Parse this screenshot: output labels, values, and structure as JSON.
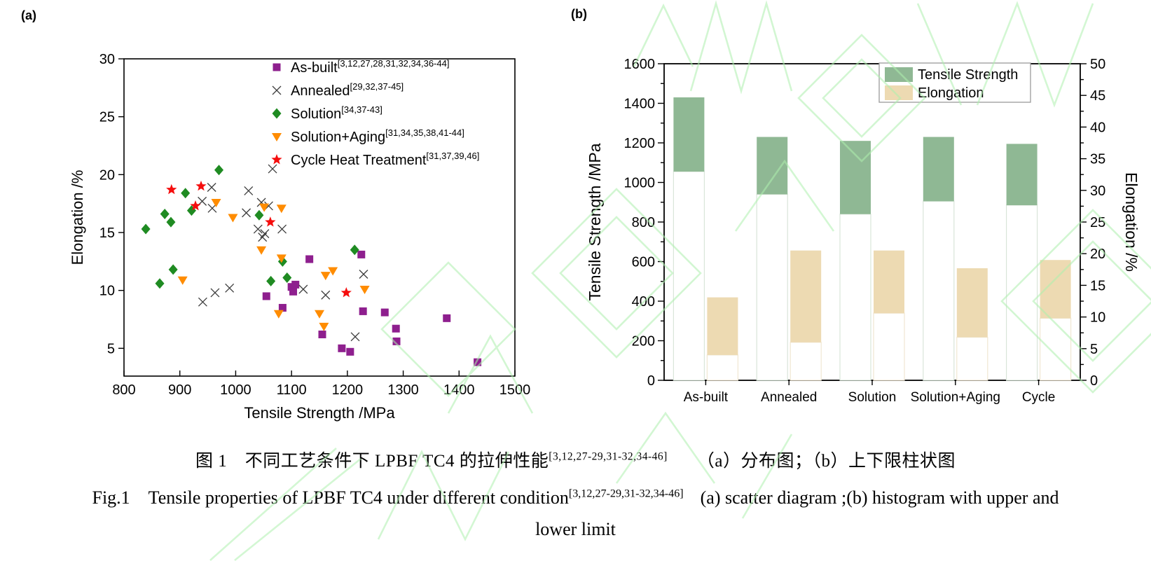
{
  "panel_a": {
    "label": "(a)",
    "chart_data": {
      "type": "scatter",
      "xlabel": "Tensile Strength /MPa",
      "ylabel": "Elongation /%",
      "xlim": [
        800,
        1500
      ],
      "xticks": [
        800,
        900,
        1000,
        1100,
        1200,
        1300,
        1400,
        1500
      ],
      "ylim": [
        2.6,
        30
      ],
      "yticks": [
        5,
        10,
        15,
        20,
        25,
        30
      ],
      "grid": false,
      "legend_position": "upper-right-inside",
      "series": [
        {
          "name": "As-built",
          "ref": "[3,12,27,28,31,32,34,36-44]",
          "marker": "square",
          "color": "#8e1f8e",
          "points": [
            [
              1055,
              9.5
            ],
            [
              1084,
              8.5
            ],
            [
              1100,
              10.3
            ],
            [
              1103,
              9.9
            ],
            [
              1107,
              10.5
            ],
            [
              1132,
              12.7
            ],
            [
              1155,
              6.2
            ],
            [
              1190,
              5.0
            ],
            [
              1205,
              4.7
            ],
            [
              1225,
              13.1
            ],
            [
              1228,
              8.2
            ],
            [
              1267,
              8.1
            ],
            [
              1287,
              6.7
            ],
            [
              1288,
              5.6
            ],
            [
              1378,
              7.6
            ],
            [
              1433,
              3.8
            ]
          ]
        },
        {
          "name": "Annealed",
          "ref": "[29,32,37-45]",
          "marker": "x",
          "color": "#3d3d3d",
          "points": [
            [
              940,
              17.7
            ],
            [
              941,
              9.0
            ],
            [
              957,
              18.9
            ],
            [
              958,
              17.1
            ],
            [
              963,
              9.8
            ],
            [
              989,
              10.2
            ],
            [
              1019,
              16.7
            ],
            [
              1023,
              18.6
            ],
            [
              1040,
              15.3
            ],
            [
              1046,
              17.6
            ],
            [
              1048,
              14.6
            ],
            [
              1052,
              14.9
            ],
            [
              1059,
              17.3
            ],
            [
              1066,
              20.5
            ],
            [
              1083,
              15.3
            ],
            [
              1121,
              10.1
            ],
            [
              1161,
              9.6
            ],
            [
              1214,
              6.0
            ],
            [
              1229,
              11.4
            ]
          ]
        },
        {
          "name": "Solution",
          "ref": "[34,37-43]",
          "marker": "diamond",
          "color": "#1f8b22",
          "points": [
            [
              839,
              15.3
            ],
            [
              864,
              10.6
            ],
            [
              873,
              16.6
            ],
            [
              884,
              15.9
            ],
            [
              888,
              11.8
            ],
            [
              910,
              18.4
            ],
            [
              921,
              16.9
            ],
            [
              970,
              20.4
            ],
            [
              1042,
              16.5
            ],
            [
              1063,
              10.8
            ],
            [
              1084,
              12.5
            ],
            [
              1092,
              11.1
            ],
            [
              1213,
              13.5
            ]
          ]
        },
        {
          "name": "Solution+Aging",
          "ref": "[31,34,35,38,41-44]",
          "marker": "triangle-down",
          "color": "#ff8c00",
          "points": [
            [
              905,
              10.9
            ],
            [
              965,
              17.6
            ],
            [
              995,
              16.3
            ],
            [
              1046,
              13.5
            ],
            [
              1051,
              17.2
            ],
            [
              1077,
              8.0
            ],
            [
              1082,
              12.8
            ],
            [
              1082,
              17.1
            ],
            [
              1150,
              8.0
            ],
            [
              1158,
              6.9
            ],
            [
              1161,
              11.3
            ],
            [
              1174,
              11.7
            ],
            [
              1231,
              10.1
            ]
          ]
        },
        {
          "name": "Cycle Heat Treatment",
          "ref": "[31,37,39,46]",
          "marker": "star",
          "color": "#f50d0d",
          "points": [
            [
              885,
              18.7
            ],
            [
              928,
              17.3
            ],
            [
              938,
              19.0
            ],
            [
              1062,
              15.9
            ],
            [
              1198,
              9.8
            ]
          ]
        }
      ]
    }
  },
  "panel_b": {
    "label": "(b)",
    "chart_data": {
      "type": "bar",
      "subtype": "floating-range-bars",
      "categories": [
        "As-built",
        "Annealed",
        "Solution",
        "Solution+Aging",
        "Cycle"
      ],
      "left_axis": {
        "label": "Tensile Strength /MPa",
        "min": 0,
        "max": 1600,
        "major_step": 200,
        "minor_step": 100
      },
      "right_axis": {
        "label": "Elongation /%",
        "min": 0,
        "max": 50,
        "major_step": 5,
        "minor_step": 2.5
      },
      "legend_position": "upper-right-inside",
      "series": [
        {
          "name": "Tensile Strength",
          "axis": "left",
          "color": "#8fb894",
          "stem_color": "#d9e5d9",
          "ranges": [
            [
              1055,
              1430
            ],
            [
              940,
              1230
            ],
            [
              840,
              1210
            ],
            [
              905,
              1230
            ],
            [
              885,
              1195
            ]
          ]
        },
        {
          "name": "Elongation",
          "axis": "right",
          "color": "#eddab2",
          "stem_color": "#f0e7d2",
          "ranges": [
            [
              4,
              13.1
            ],
            [
              6,
              20.5
            ],
            [
              10.6,
              20.5
            ],
            [
              6.8,
              17.7
            ],
            [
              9.8,
              19
            ]
          ]
        }
      ]
    }
  },
  "caption": {
    "line1_prefix": "图 1　不同工艺条件下 LPBF TC4 的拉伸性能",
    "line1_ref": "[3,12,27-29,31-32,34-46]",
    "line1_suffix": "（a）分布图；（b）上下限柱状图",
    "line2_prefix": "Fig.1　Tensile properties of LPBF TC4 under different condition",
    "line2_ref": "[3,12,27-29,31-32,34-46]",
    "line2_suffix": "(a) scatter diagram ;(b) histogram with upper and",
    "line3": "lower limit"
  },
  "colors": {
    "axis": "#000000",
    "watermark": "#aef0ae"
  }
}
